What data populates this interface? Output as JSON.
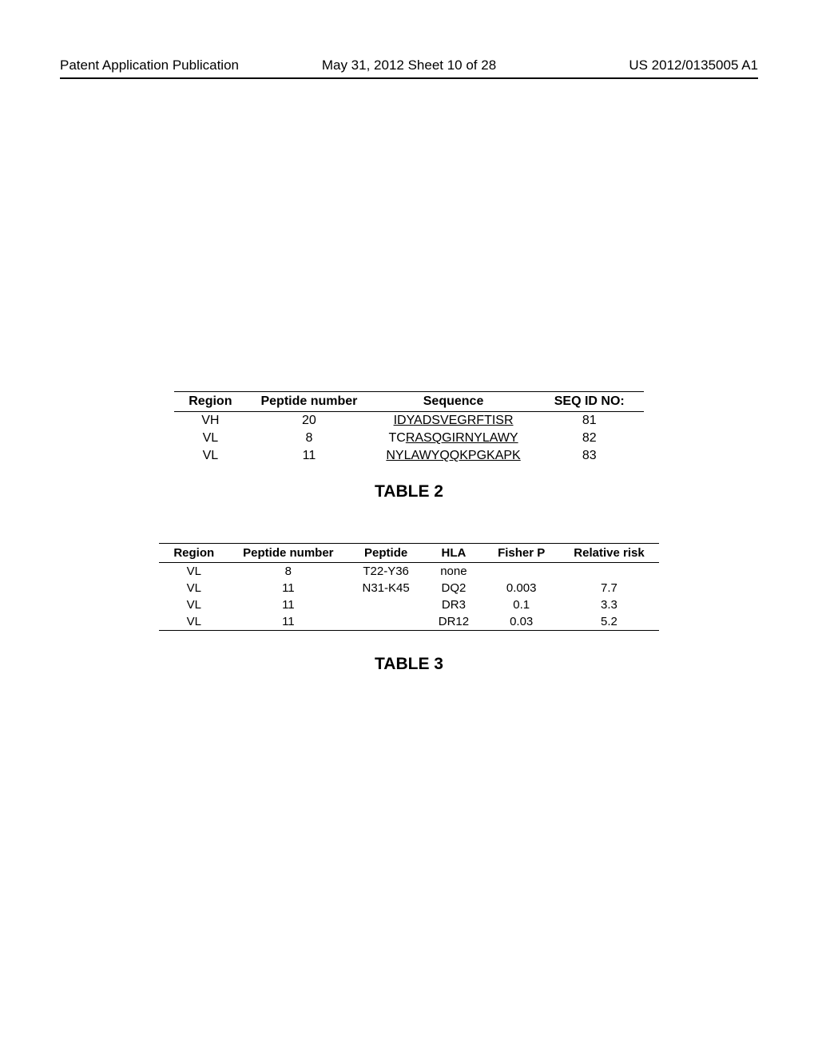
{
  "header": {
    "left": "Patent Application Publication",
    "center": "May 31, 2012  Sheet 10 of 28",
    "right": "US 2012/0135005 A1"
  },
  "table2": {
    "title": "TABLE 2",
    "columns": [
      "Region",
      "Peptide number",
      "Sequence",
      "SEQ ID NO:"
    ],
    "rows": [
      {
        "region": "VH",
        "peptide_number": "20",
        "seq_prefix": "",
        "seq_underline": "IDYADSVEGRFTISR",
        "seq_id": "81"
      },
      {
        "region": "VL",
        "peptide_number": "8",
        "seq_prefix": "TC",
        "seq_underline": "RASQGIRNYLAWY",
        "seq_id": "82"
      },
      {
        "region": "VL",
        "peptide_number": "11",
        "seq_prefix": "",
        "seq_underline": "NYLAWYQQKPGKAPK",
        "seq_id": "83"
      }
    ]
  },
  "table3": {
    "title": "TABLE 3",
    "columns": [
      "Region",
      "Peptide number",
      "Peptide",
      "HLA",
      "Fisher P",
      "Relative risk"
    ],
    "rows": [
      {
        "region": "VL",
        "peptide_number": "8",
        "peptide": "T22-Y36",
        "hla": "none",
        "fisher_p": "",
        "relative_risk": ""
      },
      {
        "region": "VL",
        "peptide_number": "11",
        "peptide": "N31-K45",
        "hla": "DQ2",
        "fisher_p": "0.003",
        "relative_risk": "7.7"
      },
      {
        "region": "VL",
        "peptide_number": "11",
        "peptide": "",
        "hla": "DR3",
        "fisher_p": "0.1",
        "relative_risk": "3.3"
      },
      {
        "region": "VL",
        "peptide_number": "11",
        "peptide": "",
        "hla": "DR12",
        "fisher_p": "0.03",
        "relative_risk": "5.2"
      }
    ]
  }
}
